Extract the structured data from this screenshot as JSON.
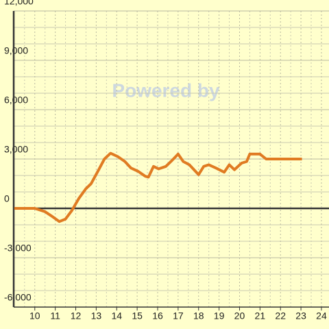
{
  "chart_data": {
    "type": "line",
    "watermark": "Powered by",
    "x": [
      9.0,
      10.0,
      10.5,
      10.8,
      11.2,
      11.5,
      11.8,
      12.15,
      12.5,
      12.75,
      13.1,
      13.4,
      13.7,
      14.05,
      14.4,
      14.7,
      15.05,
      15.4,
      15.55,
      15.8,
      16.05,
      16.4,
      16.65,
      17.0,
      17.25,
      17.55,
      18.0,
      18.25,
      18.5,
      18.85,
      19.25,
      19.5,
      19.75,
      20.1,
      20.35,
      20.5,
      21.0,
      21.3,
      23.05
    ],
    "series": [
      {
        "color": "#e07b22",
        "values": [
          0,
          0,
          -200,
          -450,
          -800,
          -650,
          -150,
          600,
          1200,
          1500,
          2300,
          3000,
          3350,
          3150,
          2850,
          2450,
          2250,
          1950,
          1900,
          2550,
          2400,
          2550,
          2850,
          3300,
          2850,
          2650,
          2050,
          2550,
          2650,
          2450,
          2200,
          2650,
          2350,
          2750,
          2850,
          3300,
          3300,
          3000,
          3000
        ]
      }
    ],
    "xlim": [
      8.97,
      24.37
    ],
    "xticks": [
      10,
      11,
      12,
      13,
      14,
      15,
      16,
      17,
      18,
      19,
      20,
      21,
      22,
      23,
      24
    ],
    "minor_xticks": [
      9.5,
      10.5,
      11.5,
      12.5,
      13.5,
      14.5,
      15.5,
      16.5,
      17.5,
      18.5,
      19.5,
      20.5,
      21.5,
      22.5,
      23.5
    ],
    "ylim": [
      -6000,
      12000
    ],
    "yticks": [
      {
        "value": -6000,
        "label": "-6,000"
      },
      {
        "value": -3000,
        "label": "-3,000"
      },
      0,
      {
        "value": 3000,
        "label": "3,000"
      },
      {
        "value": 6000,
        "label": "6,000"
      },
      {
        "value": 9000,
        "label": "9,000"
      },
      {
        "value": 12000,
        "label": "12,000"
      }
    ],
    "minor_yticks": [
      -5000,
      -4000,
      -2000,
      -1000,
      1000,
      2000,
      4000,
      5000,
      7000,
      8000,
      10000,
      11000
    ],
    "grid": true
  }
}
